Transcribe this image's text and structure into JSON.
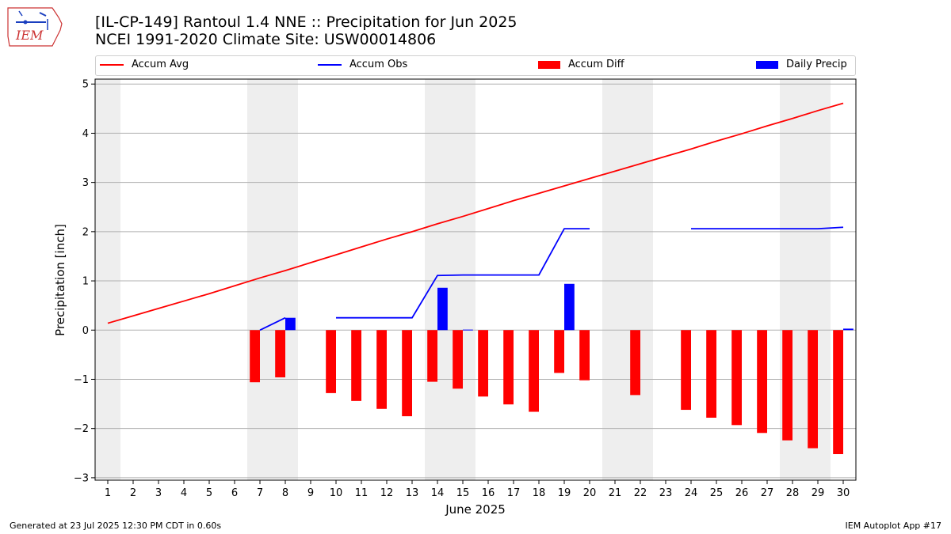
{
  "header": {
    "title_line1": "[IL-CP-149] Rantoul 1.4 NNE :: Precipitation for Jun 2025",
    "title_line2": "NCEI 1991-2020 Climate Site: USW00014806",
    "logo_text": "IEM"
  },
  "footer": {
    "generated": "Generated at 23 Jul 2025 12:30 PM CDT in 0.60s",
    "app": "IEM Autoplot App #17"
  },
  "legend": {
    "avg": "Accum Avg",
    "obs": "Accum Obs",
    "diff": "Accum Diff",
    "daily": "Daily Precip"
  },
  "colors": {
    "avg": "#ff0000",
    "obs": "#0000ff",
    "diff": "#ff0000",
    "daily": "#0000ff",
    "weekend": "#eeeeee",
    "grid": "#b0b0b0"
  },
  "chart_data": {
    "type": "bar",
    "xlabel": "June 2025",
    "ylabel": "Precipitation [inch]",
    "ylim": [
      -3.05,
      5.1
    ],
    "yticks": [
      -3,
      -2,
      -1,
      0,
      1,
      2,
      3,
      4,
      5
    ],
    "grid": true,
    "legend_position": "top",
    "days": [
      1,
      2,
      3,
      4,
      5,
      6,
      7,
      8,
      9,
      10,
      11,
      12,
      13,
      14,
      15,
      16,
      17,
      18,
      19,
      20,
      21,
      22,
      23,
      24,
      25,
      26,
      27,
      28,
      29,
      30
    ],
    "shaded_days": [
      [
        1,
        1
      ],
      [
        7,
        8
      ],
      [
        14,
        15
      ],
      [
        21,
        22
      ],
      [
        28,
        29
      ]
    ],
    "series": [
      {
        "name": "Accum Avg",
        "kind": "line",
        "values": [
          0.14,
          0.29,
          0.44,
          0.59,
          0.74,
          0.9,
          1.06,
          1.21,
          1.37,
          1.53,
          1.69,
          1.85,
          2.0,
          2.16,
          2.31,
          2.47,
          2.63,
          2.78,
          2.93,
          3.08,
          3.23,
          3.38,
          3.53,
          3.68,
          3.84,
          3.99,
          4.15,
          4.3,
          4.46,
          4.61
        ]
      },
      {
        "name": "Accum Obs",
        "kind": "line",
        "values": [
          null,
          null,
          null,
          null,
          null,
          null,
          0.0,
          0.25,
          null,
          0.25,
          0.25,
          0.25,
          0.25,
          1.11,
          1.12,
          1.12,
          1.12,
          1.12,
          2.06,
          2.06,
          null,
          null,
          null,
          2.06,
          2.06,
          2.06,
          2.06,
          2.06,
          2.06,
          2.09
        ]
      },
      {
        "name": "Accum Diff",
        "kind": "bar",
        "values": [
          null,
          null,
          null,
          null,
          null,
          null,
          -1.06,
          -0.96,
          null,
          -1.28,
          -1.44,
          -1.6,
          -1.75,
          -1.05,
          -1.19,
          -1.35,
          -1.51,
          -1.66,
          -0.87,
          -1.02,
          null,
          -1.32,
          null,
          -1.62,
          -1.78,
          -1.93,
          -2.09,
          -2.24,
          -2.4,
          -2.52
        ]
      },
      {
        "name": "Daily Precip",
        "kind": "bar",
        "values": [
          null,
          null,
          null,
          null,
          null,
          null,
          0.0,
          0.25,
          null,
          0.0,
          0.0,
          0.0,
          0.0,
          0.86,
          0.01,
          0.0,
          0.0,
          0.0,
          0.94,
          0.0,
          null,
          null,
          null,
          0.0,
          0.0,
          0.0,
          0.0,
          0.0,
          0.0,
          0.03
        ]
      }
    ]
  }
}
